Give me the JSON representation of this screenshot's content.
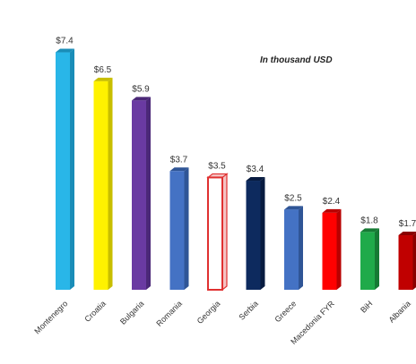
{
  "chart_data": {
    "type": "bar",
    "unit_note": "In thousand  USD",
    "categories": [
      "Montenegro",
      "Croatia",
      "Bulgaria",
      "Romania",
      "Georgia",
      "Serbia",
      "Greece",
      "Macedonia FYR",
      "BiH",
      "Albania"
    ],
    "values": [
      7.4,
      6.5,
      5.9,
      3.7,
      3.5,
      3.4,
      2.5,
      2.4,
      1.8,
      1.7
    ],
    "value_labels": [
      "$7.4",
      "$6.5",
      "$5.9",
      "$3.7",
      "$3.5",
      "$3.4",
      "$2.5",
      "$2.4",
      "$1.8",
      "$1.7"
    ],
    "ylim": [
      0,
      8
    ],
    "grid": false,
    "legend": "none",
    "bar_colors": [
      "#29B6E8",
      "#FFF200",
      "#6A3AA2",
      "#4472C4",
      "#FFFFFF",
      "#0D2A5E",
      "#4472C4",
      "#FF0000",
      "#1FAA4A",
      "#C00000"
    ],
    "bar_side_colors": [
      "#1A8DB8",
      "#C8BE00",
      "#4B2878",
      "#2F5596",
      "#F4C2C2",
      "#081B40",
      "#2F5596",
      "#B80000",
      "#157A34",
      "#8A0000"
    ],
    "bar_outline_colors": [
      "none",
      "none",
      "none",
      "none",
      "#E03030",
      "none",
      "none",
      "none",
      "none",
      "none"
    ]
  }
}
